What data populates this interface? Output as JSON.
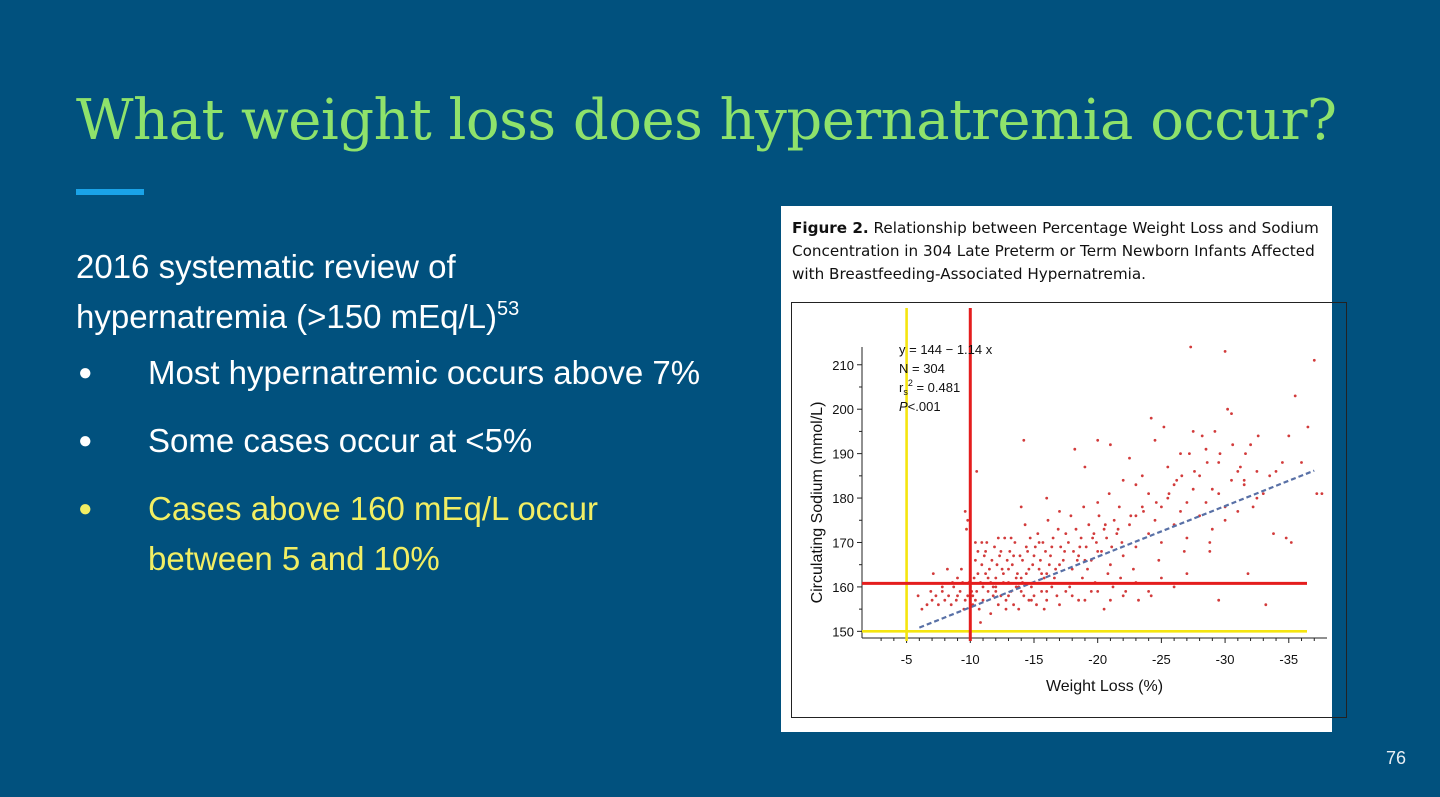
{
  "slide": {
    "title": "What weight loss does hypernatremia occur?",
    "intro_line1": "2016 systematic review of",
    "intro_line2": "hypernatremia (>150 mEq/L)",
    "intro_sup": "53",
    "bullets": [
      {
        "text": "Most hypernatremic occurs above 7%",
        "highlight": false
      },
      {
        "text": "Some cases occur at <5%",
        "highlight": false
      },
      {
        "text": "Cases above 160 mEq/L occur between 5 and 10%",
        "highlight": true
      }
    ],
    "page_number": "76",
    "colors": {
      "background": "#01517e",
      "title": "#8fe26b",
      "accent": "#1aa3e8",
      "highlight": "#f2ee63"
    }
  },
  "figure": {
    "caption_label": "Figure 2.",
    "caption_text": "Relationship between Percentage Weight Loss and Sodium Concentration in 304 Late Preterm or Term Newborn Infants Affected with Breastfeeding-Associated Hypernatremia."
  },
  "chart_data": {
    "type": "scatter",
    "xlabel": "Weight Loss (%)",
    "ylabel": "Circulating Sodium (mmol/L)",
    "xlim": [
      -1.5,
      -38
    ],
    "ylim": [
      148.5,
      214
    ],
    "xticks": [
      -5,
      -10,
      -15,
      -20,
      -25,
      -30,
      -35
    ],
    "yticks": [
      150,
      160,
      170,
      180,
      190,
      200,
      210
    ],
    "stats": [
      "y = 144 − 1.14 x",
      "N = 304",
      "rs2 = 0.481",
      "P<.001"
    ],
    "regression": {
      "intercept": 144,
      "slope": -1.14,
      "x_range": [
        -6,
        -37
      ]
    },
    "reference_lines": [
      {
        "axis": "x",
        "value": -5,
        "color": "#f5e50f"
      },
      {
        "axis": "y",
        "value": 150,
        "color": "#f5e50f"
      },
      {
        "axis": "x",
        "value": -10,
        "color": "#e41d1d"
      },
      {
        "axis": "y",
        "value": 160.8,
        "color": "#e41d1d"
      }
    ],
    "point_color": "#d23b3b",
    "points": [
      [
        -6.6,
        156
      ],
      [
        -7.0,
        157
      ],
      [
        -7.3,
        158
      ],
      [
        -7.5,
        156
      ],
      [
        -7.8,
        159
      ],
      [
        -8.0,
        157
      ],
      [
        -8.3,
        158
      ],
      [
        -8.5,
        156
      ],
      [
        -8.7,
        160
      ],
      [
        -8.9,
        157
      ],
      [
        -7.1,
        163
      ],
      [
        -9.0,
        158
      ],
      [
        -9.2,
        159
      ],
      [
        -9.4,
        161
      ],
      [
        -9.6,
        157
      ],
      [
        -9.8,
        158
      ],
      [
        -10.0,
        160
      ],
      [
        -10.2,
        156
      ],
      [
        -10.3,
        162
      ],
      [
        -10.5,
        159
      ],
      [
        -10.7,
        155
      ],
      [
        -10.8,
        161
      ],
      [
        -11.0,
        157
      ],
      [
        -11.2,
        163
      ],
      [
        -11.4,
        159
      ],
      [
        -11.6,
        154
      ],
      [
        -11.8,
        160
      ],
      [
        -12.0,
        162
      ],
      [
        -12.2,
        156
      ],
      [
        -12.4,
        158
      ],
      [
        -12.6,
        161
      ],
      [
        -12.8,
        157
      ],
      [
        -13.0,
        164
      ],
      [
        -13.2,
        159
      ],
      [
        -13.4,
        156
      ],
      [
        -13.6,
        160
      ],
      [
        -13.8,
        155
      ],
      [
        -14.0,
        162
      ],
      [
        -14.2,
        158
      ],
      [
        -14.4,
        163
      ],
      [
        -14.6,
        157
      ],
      [
        -14.8,
        160
      ],
      [
        -15.0,
        161
      ],
      [
        -15.2,
        156
      ],
      [
        -15.4,
        164
      ],
      [
        -15.6,
        159
      ],
      [
        -15.8,
        162
      ],
      [
        -16.0,
        157
      ],
      [
        -16.2,
        165
      ],
      [
        -16.4,
        160
      ],
      [
        -9.6,
        177
      ],
      [
        -9.8,
        175
      ],
      [
        -10.4,
        166
      ],
      [
        -10.6,
        168
      ],
      [
        -10.9,
        165
      ],
      [
        -11.1,
        167
      ],
      [
        -11.3,
        170
      ],
      [
        -11.5,
        164
      ],
      [
        -11.7,
        166
      ],
      [
        -11.9,
        169
      ],
      [
        -12.1,
        165
      ],
      [
        -12.3,
        167
      ],
      [
        -12.5,
        164
      ],
      [
        -12.7,
        171
      ],
      [
        -12.9,
        166
      ],
      [
        -13.1,
        168
      ],
      [
        -13.3,
        165
      ],
      [
        -13.5,
        170
      ],
      [
        -13.7,
        163
      ],
      [
        -13.9,
        167
      ],
      [
        -14.1,
        166
      ],
      [
        -14.3,
        174
      ],
      [
        -14.5,
        168
      ],
      [
        -14.7,
        171
      ],
      [
        -14.9,
        165
      ],
      [
        -15.1,
        169
      ],
      [
        -15.3,
        172
      ],
      [
        -15.5,
        166
      ],
      [
        -15.7,
        170
      ],
      [
        -15.9,
        168
      ],
      [
        -16.1,
        175
      ],
      [
        -16.3,
        167
      ],
      [
        -16.5,
        171
      ],
      [
        -16.7,
        164
      ],
      [
        -16.9,
        173
      ],
      [
        -17.1,
        169
      ],
      [
        -17.3,
        166
      ],
      [
        -17.5,
        172
      ],
      [
        -17.7,
        170
      ],
      [
        -17.9,
        176
      ],
      [
        -18.1,
        168
      ],
      [
        -18.3,
        173
      ],
      [
        -18.5,
        167
      ],
      [
        -18.7,
        171
      ],
      [
        -18.9,
        178
      ],
      [
        -19.1,
        169
      ],
      [
        -19.3,
        174
      ],
      [
        -19.5,
        166
      ],
      [
        -19.7,
        172
      ],
      [
        -19.9,
        170
      ],
      [
        -20.1,
        176
      ],
      [
        -20.3,
        168
      ],
      [
        -20.5,
        173
      ],
      [
        -20.7,
        171
      ],
      [
        -20.9,
        181
      ],
      [
        -21.1,
        169
      ],
      [
        -21.3,
        175
      ],
      [
        -21.5,
        172
      ],
      [
        -21.7,
        178
      ],
      [
        -21.9,
        170
      ],
      [
        -10.5,
        186
      ],
      [
        -14.0,
        178
      ],
      [
        -16.0,
        180
      ],
      [
        -17.0,
        177
      ],
      [
        -18.2,
        191
      ],
      [
        -19.0,
        187
      ],
      [
        -20.0,
        179
      ],
      [
        -21.0,
        192
      ],
      [
        -22.0,
        184
      ],
      [
        -22.5,
        189
      ],
      [
        -23.0,
        176
      ],
      [
        -23.5,
        185
      ],
      [
        -24.0,
        181
      ],
      [
        -24.5,
        193
      ],
      [
        -25.0,
        178
      ],
      [
        -25.5,
        187
      ],
      [
        -26.0,
        183
      ],
      [
        -26.5,
        190
      ],
      [
        -27.0,
        179
      ],
      [
        -27.5,
        195
      ],
      [
        -28.0,
        185
      ],
      [
        -28.5,
        191
      ],
      [
        -29.0,
        182
      ],
      [
        -29.5,
        188
      ],
      [
        -30.0,
        178
      ],
      [
        -30.5,
        199
      ],
      [
        -31.0,
        186
      ],
      [
        -31.5,
        184
      ],
      [
        -32.0,
        192
      ],
      [
        -32.5,
        180
      ],
      [
        -33.0,
        181
      ],
      [
        -34.0,
        186
      ],
      [
        -35.0,
        194
      ],
      [
        -35.5,
        203
      ],
      [
        -36.5,
        196
      ],
      [
        -37.0,
        211
      ],
      [
        -37.2,
        181
      ],
      [
        -37.6,
        181
      ],
      [
        -27.3,
        214
      ],
      [
        -30.0,
        213
      ],
      [
        -14.2,
        193
      ],
      [
        -20.0,
        193
      ],
      [
        -23.0,
        183
      ],
      [
        -24.2,
        198
      ],
      [
        -25.2,
        196
      ],
      [
        -26.2,
        184
      ],
      [
        -27.2,
        190
      ],
      [
        -28.2,
        194
      ],
      [
        -29.2,
        195
      ],
      [
        -30.2,
        200
      ],
      [
        -31.2,
        187
      ],
      [
        -32.2,
        178
      ],
      [
        -33.2,
        156
      ],
      [
        -33.8,
        172
      ],
      [
        -34.8,
        171
      ],
      [
        -36.0,
        188
      ],
      [
        -35.2,
        170
      ],
      [
        -31.8,
        163
      ],
      [
        -29.5,
        157
      ],
      [
        -28.8,
        168
      ],
      [
        -22.0,
        158
      ],
      [
        -23.0,
        161
      ],
      [
        -24.0,
        159
      ],
      [
        -25.0,
        162
      ],
      [
        -26.0,
        160
      ],
      [
        -27.0,
        163
      ],
      [
        -21.0,
        157
      ],
      [
        -20.5,
        155
      ],
      [
        -19.5,
        159
      ],
      [
        -18.5,
        157
      ],
      [
        -17.5,
        159
      ],
      [
        -16.8,
        158
      ],
      [
        -15.8,
        155
      ],
      [
        -14.8,
        157
      ],
      [
        -13.8,
        160
      ],
      [
        -12.8,
        155
      ],
      [
        -11.8,
        158
      ],
      [
        -10.8,
        152
      ],
      [
        -10.2,
        158
      ],
      [
        -9.5,
        155
      ],
      [
        -9.0,
        162
      ],
      [
        -8.2,
        164
      ],
      [
        -7.8,
        160
      ],
      [
        -6.2,
        155
      ],
      [
        -5.9,
        158
      ],
      [
        -6.9,
        159
      ],
      [
        -8.6,
        161
      ],
      [
        -9.3,
        164
      ],
      [
        -10.9,
        170
      ],
      [
        -11.6,
        161
      ],
      [
        -12.4,
        168
      ],
      [
        -13.2,
        171
      ],
      [
        -14.1,
        161
      ],
      [
        -15.0,
        167
      ],
      [
        -16.0,
        163
      ],
      [
        -17.0,
        165
      ],
      [
        -18.0,
        164
      ],
      [
        -19.0,
        166
      ],
      [
        -20.0,
        168
      ],
      [
        -21.0,
        165
      ],
      [
        -22.0,
        167
      ],
      [
        -23.0,
        169
      ],
      [
        -24.0,
        172
      ],
      [
        -25.0,
        170
      ],
      [
        -26.0,
        174
      ],
      [
        -27.0,
        171
      ],
      [
        -28.0,
        176
      ],
      [
        -29.0,
        173
      ],
      [
        -30.0,
        175
      ],
      [
        -31.0,
        177
      ],
      [
        -22.5,
        174
      ],
      [
        -23.5,
        178
      ],
      [
        -24.5,
        175
      ],
      [
        -25.5,
        180
      ],
      [
        -26.5,
        177
      ],
      [
        -27.5,
        182
      ],
      [
        -28.5,
        179
      ],
      [
        -29.5,
        181
      ],
      [
        -30.5,
        184
      ],
      [
        -31.5,
        183
      ],
      [
        -32.5,
        186
      ],
      [
        -33.5,
        185
      ],
      [
        -34.5,
        188
      ],
      [
        -22.8,
        164
      ],
      [
        -24.8,
        166
      ],
      [
        -26.8,
        168
      ],
      [
        -28.8,
        170
      ],
      [
        -21.8,
        162
      ],
      [
        -19.8,
        161
      ],
      [
        -18.8,
        162
      ],
      [
        -17.8,
        160
      ],
      [
        -16.6,
        162
      ],
      [
        -15.6,
        163
      ],
      [
        -14.6,
        164
      ],
      [
        -13.6,
        162
      ],
      [
        -12.6,
        163
      ],
      [
        -11.4,
        162
      ],
      [
        -10.6,
        163
      ],
      [
        -9.9,
        161
      ],
      [
        -10.1,
        159
      ],
      [
        -10.4,
        157
      ],
      [
        -11.0,
        160
      ],
      [
        -12.0,
        159
      ],
      [
        -13.0,
        158
      ],
      [
        -14.0,
        159
      ],
      [
        -15.0,
        158
      ],
      [
        -16.0,
        159
      ],
      [
        -17.0,
        156
      ],
      [
        -18.0,
        158
      ],
      [
        -19.0,
        157
      ],
      [
        -20.0,
        159
      ],
      [
        -21.2,
        160
      ],
      [
        -22.2,
        159
      ],
      [
        -23.2,
        157
      ],
      [
        -24.2,
        158
      ],
      [
        -20.8,
        163
      ],
      [
        -19.2,
        164
      ],
      [
        -18.4,
        166
      ],
      [
        -17.4,
        168
      ],
      [
        -16.4,
        169
      ],
      [
        -15.4,
        170
      ],
      [
        -14.4,
        169
      ],
      [
        -13.4,
        167
      ],
      [
        -12.2,
        171
      ],
      [
        -11.2,
        168
      ],
      [
        -10.4,
        170
      ],
      [
        -9.7,
        173
      ],
      [
        -18.6,
        169
      ],
      [
        -19.6,
        171
      ],
      [
        -20.6,
        174
      ],
      [
        -21.6,
        173
      ],
      [
        -22.6,
        176
      ],
      [
        -23.6,
        177
      ],
      [
        -24.6,
        179
      ],
      [
        -25.6,
        181
      ],
      [
        -26.6,
        185
      ],
      [
        -27.6,
        186
      ],
      [
        -28.6,
        188
      ],
      [
        -29.6,
        190
      ],
      [
        -30.6,
        192
      ],
      [
        -31.6,
        190
      ],
      [
        -32.6,
        194
      ],
      [
        -12.0,
        160
      ],
      [
        -13.0,
        161
      ]
    ]
  }
}
